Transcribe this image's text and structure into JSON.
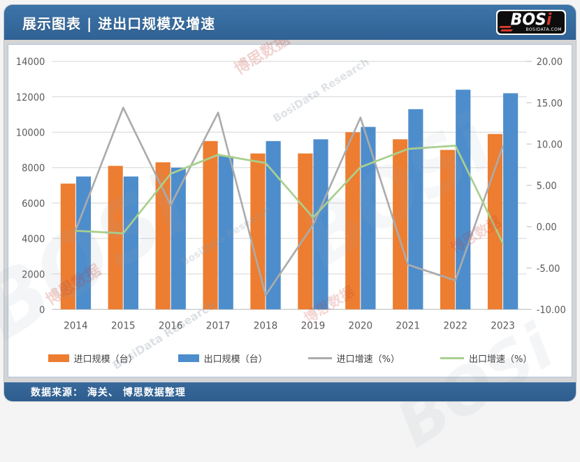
{
  "header": {
    "title": "展示图表 | 进出口规模及增速",
    "logo": {
      "text_main": "BOS",
      "text_dot_letter": "i",
      "subtext": "BOSIDATA.COM"
    }
  },
  "footer": {
    "source": "数据来源： 海关、 博思数据整理"
  },
  "watermarks": {
    "cn": "博思数据",
    "en": "BosiData Research",
    "ghost": "BOSi"
  },
  "colors": {
    "header_bg": "#336699",
    "import_bar": "#ED7D31",
    "export_bar": "#4D8DCC",
    "import_line": "#ABABAB",
    "export_line": "#A9D08E",
    "grid": "#D9D9D9",
    "axis_line": "#BFBFBF",
    "tick_text": "#595959"
  },
  "chart_data": {
    "type": "bar+line",
    "title": "进出口规模及增速",
    "categories": [
      "2014",
      "2015",
      "2016",
      "2017",
      "2018",
      "2019",
      "2020",
      "2021",
      "2022",
      "2023"
    ],
    "series": [
      {
        "name": "进口规模（台）",
        "type": "bar",
        "axis": "left",
        "color": "#ED7D31",
        "values": [
          7100,
          8100,
          8300,
          9500,
          8800,
          8800,
          10000,
          9600,
          9000,
          9900
        ]
      },
      {
        "name": "出口规模（台）",
        "type": "bar",
        "axis": "left",
        "color": "#4D8DCC",
        "values": [
          7500,
          7500,
          8000,
          8650,
          9500,
          9600,
          10300,
          11300,
          12400,
          12200
        ]
      },
      {
        "name": "进口增速（%）",
        "type": "line",
        "axis": "right",
        "color": "#ABABAB",
        "values": [
          -0.4,
          14.4,
          2.6,
          13.8,
          -8.3,
          0.2,
          13.2,
          -4.6,
          -6.5,
          9.7
        ]
      },
      {
        "name": "出口增速（%）",
        "type": "line",
        "axis": "right",
        "color": "#A9D08E",
        "values": [
          -0.5,
          -0.8,
          6.4,
          8.7,
          7.7,
          1.1,
          7.2,
          9.4,
          9.8,
          -2.0
        ]
      }
    ],
    "left_axis": {
      "min": 0,
      "max": 14000,
      "step": 2000,
      "ticks": [
        0,
        2000,
        4000,
        6000,
        8000,
        10000,
        12000,
        14000
      ],
      "labels": [
        "0",
        "2000",
        "4000",
        "6000",
        "8000",
        "10000",
        "12000",
        "14000"
      ]
    },
    "right_axis": {
      "min": -10,
      "max": 20,
      "step": 5,
      "ticks": [
        -10,
        -5,
        0,
        5,
        10,
        15,
        20
      ],
      "labels": [
        "-10.00",
        "-5.00",
        "0.00",
        "5.00",
        "10.00",
        "15.00",
        "20.00"
      ]
    },
    "grid": true,
    "legend_position": "bottom"
  }
}
